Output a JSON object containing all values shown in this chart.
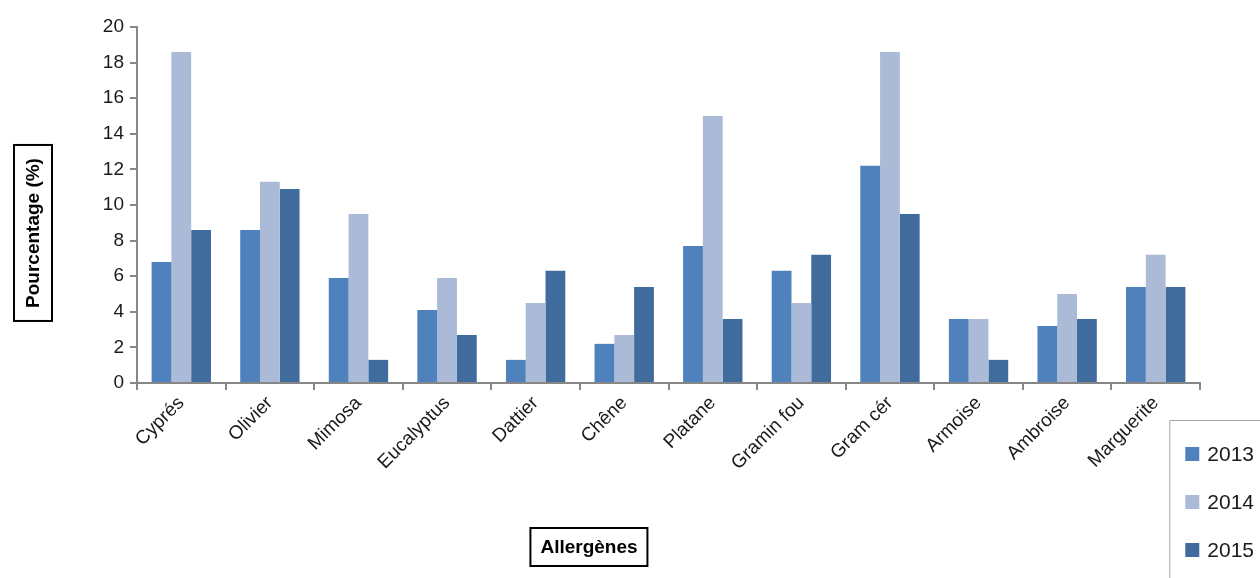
{
  "chart_data": {
    "type": "bar",
    "xlabel": "Allergènes",
    "ylabel": "Pourcentage (%)",
    "categories": [
      "Cyprés",
      "Olivier",
      "Mimosa",
      "Eucalyptus",
      "Dattier",
      "Chêne",
      "Platane",
      "Gramin fou",
      "Gram cér",
      "Armoise",
      "Ambroise",
      "Marguerite"
    ],
    "series": [
      {
        "name": "2013",
        "color": "#4f81bd",
        "values": [
          6.8,
          8.6,
          5.9,
          4.1,
          1.3,
          2.2,
          7.7,
          6.3,
          12.2,
          3.6,
          3.2,
          5.4
        ]
      },
      {
        "name": "2014",
        "color": "#aabad7",
        "values": [
          18.6,
          11.3,
          9.5,
          5.9,
          4.5,
          2.7,
          15.0,
          4.5,
          18.6,
          3.6,
          5.0,
          7.2
        ]
      },
      {
        "name": "2015",
        "color": "#3f6b9d",
        "values": [
          8.6,
          10.9,
          1.3,
          2.7,
          6.3,
          5.4,
          3.6,
          7.2,
          9.5,
          1.3,
          3.6,
          5.4
        ]
      }
    ],
    "ylim": [
      0,
      20
    ],
    "yticks": [
      0,
      2,
      4,
      6,
      8,
      10,
      12,
      14,
      16,
      18,
      20
    ],
    "grid": false,
    "legend": "bottom right"
  }
}
